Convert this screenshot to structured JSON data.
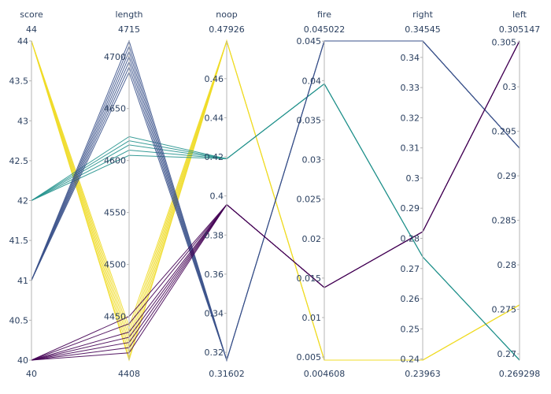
{
  "chart_data": {
    "type": "parallel_coordinates",
    "dimensions": [
      {
        "key": "score",
        "label": "score",
        "range": [
          40,
          44
        ],
        "range_labels": [
          "40",
          "44"
        ],
        "ticks": [
          40,
          40.5,
          41,
          41.5,
          42,
          42.5,
          43,
          43.5,
          44
        ],
        "tick_labels": [
          "40",
          "40.5",
          "41",
          "41.5",
          "42",
          "42.5",
          "43",
          "43.5",
          "44"
        ]
      },
      {
        "key": "length",
        "label": "length",
        "range": [
          4408,
          4715
        ],
        "range_labels": [
          "4408",
          "4715"
        ],
        "ticks": [
          4450,
          4500,
          4550,
          4600,
          4650,
          4700
        ],
        "tick_labels": [
          "4450",
          "4500",
          "4550",
          "4600",
          "4650",
          "4700"
        ]
      },
      {
        "key": "noop",
        "label": "noop",
        "range": [
          0.31602,
          0.47926
        ],
        "range_labels": [
          "0.31602",
          "0.47926"
        ],
        "ticks": [
          0.32,
          0.34,
          0.36,
          0.38,
          0.4,
          0.42,
          0.44,
          0.46
        ],
        "tick_labels": [
          "0.32",
          "0.34",
          "0.36",
          "0.38",
          "0.4",
          "0.42",
          "0.44",
          "0.46"
        ]
      },
      {
        "key": "fire",
        "label": "fire",
        "range": [
          0.004608,
          0.045022
        ],
        "range_labels": [
          "0.004608",
          "0.045022"
        ],
        "ticks": [
          0.005,
          0.01,
          0.015,
          0.02,
          0.025,
          0.03,
          0.035,
          0.04,
          0.045
        ],
        "tick_labels": [
          "0.005",
          "0.01",
          "0.015",
          "0.02",
          "0.025",
          "0.03",
          "0.035",
          "0.04",
          "0.045"
        ]
      },
      {
        "key": "right",
        "label": "right",
        "range": [
          0.23963,
          0.34545
        ],
        "range_labels": [
          "0.23963",
          "0.34545"
        ],
        "ticks": [
          0.24,
          0.25,
          0.26,
          0.27,
          0.28,
          0.29,
          0.3,
          0.31,
          0.32,
          0.33,
          0.34
        ],
        "tick_labels": [
          "0.24",
          "0.25",
          "0.26",
          "0.27",
          "0.28",
          "0.29",
          "0.3",
          "0.31",
          "0.32",
          "0.33",
          "0.34"
        ]
      },
      {
        "key": "left",
        "label": "left",
        "range": [
          0.269298,
          0.305147
        ],
        "range_labels": [
          "0.269298",
          "0.305147"
        ],
        "ticks": [
          0.27,
          0.275,
          0.28,
          0.285,
          0.29,
          0.295,
          0.3,
          0.305
        ],
        "tick_labels": [
          "0.27",
          "0.275",
          "0.28",
          "0.285",
          "0.29",
          "0.295",
          "0.3",
          "0.305"
        ]
      }
    ],
    "color_scale": "viridis",
    "color_range": [
      40,
      44
    ],
    "lines": [
      {
        "score": 44,
        "length": 4408,
        "noop": 0.47926,
        "fire": 0.004608,
        "right": 0.23963,
        "left": 0.2755
      },
      {
        "score": 44,
        "length": 4410,
        "noop": 0.47926,
        "fire": 0.004608,
        "right": 0.23963,
        "left": 0.2755
      },
      {
        "score": 44,
        "length": 4415,
        "noop": 0.47926,
        "fire": 0.004608,
        "right": 0.23963,
        "left": 0.2755
      },
      {
        "score": 44,
        "length": 4420,
        "noop": 0.47926,
        "fire": 0.004608,
        "right": 0.23963,
        "left": 0.2755
      },
      {
        "score": 44,
        "length": 4425,
        "noop": 0.47926,
        "fire": 0.004608,
        "right": 0.23963,
        "left": 0.2755
      },
      {
        "score": 44,
        "length": 4430,
        "noop": 0.47926,
        "fire": 0.004608,
        "right": 0.23963,
        "left": 0.2755
      },
      {
        "score": 44,
        "length": 4435,
        "noop": 0.47926,
        "fire": 0.004608,
        "right": 0.23963,
        "left": 0.2755
      },
      {
        "score": 44,
        "length": 4440,
        "noop": 0.47926,
        "fire": 0.004608,
        "right": 0.23963,
        "left": 0.2755
      },
      {
        "score": 42,
        "length": 4623,
        "noop": 0.419,
        "fire": 0.0396,
        "right": 0.27386,
        "left": 0.269298
      },
      {
        "score": 42,
        "length": 4619,
        "noop": 0.419,
        "fire": 0.0396,
        "right": 0.27386,
        "left": 0.269298
      },
      {
        "score": 42,
        "length": 4615,
        "noop": 0.419,
        "fire": 0.0396,
        "right": 0.27386,
        "left": 0.269298
      },
      {
        "score": 42,
        "length": 4610,
        "noop": 0.419,
        "fire": 0.0396,
        "right": 0.27386,
        "left": 0.269298
      },
      {
        "score": 42,
        "length": 4605,
        "noop": 0.419,
        "fire": 0.0396,
        "right": 0.27386,
        "left": 0.269298
      },
      {
        "score": 41,
        "length": 4715,
        "noop": 0.31602,
        "fire": 0.045022,
        "right": 0.34545,
        "left": 0.2931
      },
      {
        "score": 41,
        "length": 4710,
        "noop": 0.31602,
        "fire": 0.045022,
        "right": 0.34545,
        "left": 0.2931
      },
      {
        "score": 41,
        "length": 4705,
        "noop": 0.31602,
        "fire": 0.045022,
        "right": 0.34545,
        "left": 0.2931
      },
      {
        "score": 41,
        "length": 4700,
        "noop": 0.31602,
        "fire": 0.045022,
        "right": 0.34545,
        "left": 0.2931
      },
      {
        "score": 41,
        "length": 4695,
        "noop": 0.31602,
        "fire": 0.045022,
        "right": 0.34545,
        "left": 0.2931
      },
      {
        "score": 41,
        "length": 4690,
        "noop": 0.31602,
        "fire": 0.045022,
        "right": 0.34545,
        "left": 0.2931
      },
      {
        "score": 41,
        "length": 4685,
        "noop": 0.31602,
        "fire": 0.045022,
        "right": 0.34545,
        "left": 0.2931
      },
      {
        "score": 40,
        "length": 4415,
        "noop": 0.3956,
        "fire": 0.0138,
        "right": 0.2822,
        "left": 0.305147
      },
      {
        "score": 40,
        "length": 4420,
        "noop": 0.3956,
        "fire": 0.0138,
        "right": 0.2822,
        "left": 0.305147
      },
      {
        "score": 40,
        "length": 4425,
        "noop": 0.3956,
        "fire": 0.0138,
        "right": 0.2822,
        "left": 0.305147
      },
      {
        "score": 40,
        "length": 4430,
        "noop": 0.3956,
        "fire": 0.0138,
        "right": 0.2822,
        "left": 0.305147
      },
      {
        "score": 40,
        "length": 4435,
        "noop": 0.3956,
        "fire": 0.0138,
        "right": 0.2822,
        "left": 0.305147
      },
      {
        "score": 40,
        "length": 4443,
        "noop": 0.3956,
        "fire": 0.0138,
        "right": 0.2822,
        "left": 0.305147
      },
      {
        "score": 40,
        "length": 4450,
        "noop": 0.3956,
        "fire": 0.0138,
        "right": 0.2822,
        "left": 0.305147
      }
    ]
  }
}
